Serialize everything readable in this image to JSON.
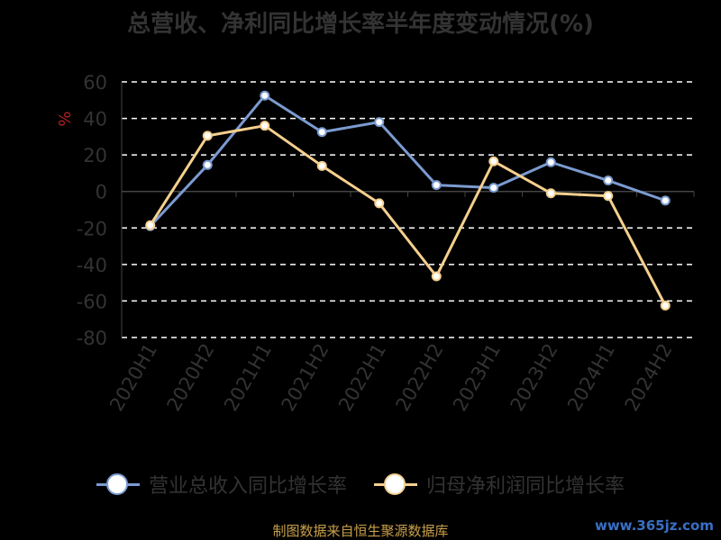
{
  "chart_data": {
    "type": "line",
    "title": "总营收、净利同比增长率半年度变动情况(%)",
    "ylabel": "%",
    "categories": [
      "2020H1",
      "2020H2",
      "2021H1",
      "2021H2",
      "2022H1",
      "2022H2",
      "2023H1",
      "2023H2",
      "2024H1",
      "2024H2"
    ],
    "ylim": [
      -80,
      60
    ],
    "yticks": [
      60,
      40,
      20,
      0,
      -20,
      -40,
      -60,
      -80
    ],
    "grid": true,
    "legend_position": "bottom",
    "series": [
      {
        "name": "营业总收入同比增长率",
        "color": "#7b9bd0",
        "values": [
          -19,
          14.5,
          52.5,
          32.5,
          38,
          3.5,
          2,
          16,
          6,
          -5
        ]
      },
      {
        "name": "归母净利润同比增长率",
        "color": "#f5cf8e",
        "values": [
          -18.5,
          30.5,
          36,
          14,
          -6.5,
          -46.5,
          16.5,
          -1,
          -2.5,
          -62.5
        ]
      }
    ]
  },
  "footer": {
    "source": "制图数据来自恒生聚源数据库",
    "watermark": "www.365jz.com"
  }
}
